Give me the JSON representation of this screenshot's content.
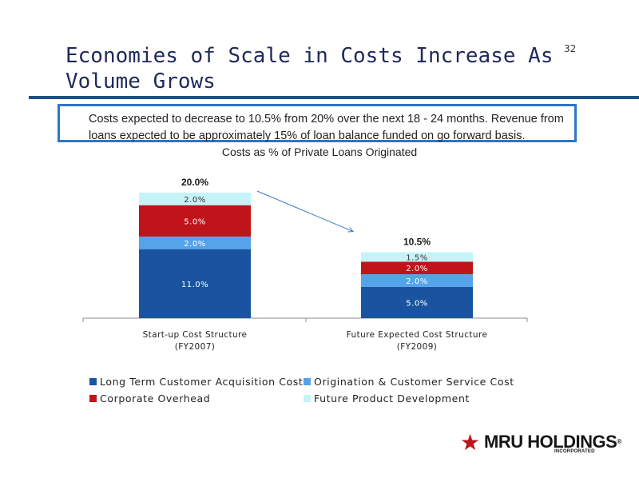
{
  "slide": {
    "title": "Economies of Scale in Costs Increase As Volume Grows",
    "page_number": "32"
  },
  "callout": {
    "text": "Costs expected to decrease to 10.5% from 20% over the next 18 - 24 months. Revenue from loans expected to be approximately 15% of loan balance funded on go forward basis."
  },
  "logo": {
    "name": "MRU HOLDINGS",
    "registered_mark": "®",
    "sub": "INCORPORATED",
    "star_icon": "star-icon"
  },
  "colors": {
    "title": "#1f2a5a",
    "rule": "#1f4e8c",
    "callout_border": "#2f75c9",
    "arrow": "#3c78c4"
  },
  "chart_data": {
    "type": "bar",
    "stacked": true,
    "title": "Costs as % of Private Loans Originated",
    "categories": [
      [
        "Start-up Cost Structure",
        "(FY2007)"
      ],
      [
        "Future Expected Cost Structure",
        "(FY2009)"
      ]
    ],
    "totals": [
      "20.0%",
      "10.5%"
    ],
    "series": [
      {
        "name": "Long Term Customer Acquisition Cost",
        "color": "#1a54a0",
        "values": [
          11.0,
          5.0
        ],
        "labels": [
          "11.0%",
          "5.0%"
        ]
      },
      {
        "name": "Origination & Customer Service Cost",
        "color": "#55a4ea",
        "values": [
          2.0,
          2.0
        ],
        "labels": [
          "2.0%",
          "2.0%"
        ]
      },
      {
        "name": "Corporate Overhead",
        "color": "#c0141b",
        "values": [
          5.0,
          2.0
        ],
        "labels": [
          "5.0%",
          "2.0%"
        ]
      },
      {
        "name": "Future Product Development",
        "color": "#c4f4f8",
        "values": [
          2.0,
          1.5
        ],
        "labels": [
          "2.0%",
          "1.5%"
        ]
      }
    ],
    "ylim": [
      0,
      20
    ],
    "legend_position": "bottom",
    "annotation": "arrow from the FY2007 total to the FY2009 total"
  }
}
